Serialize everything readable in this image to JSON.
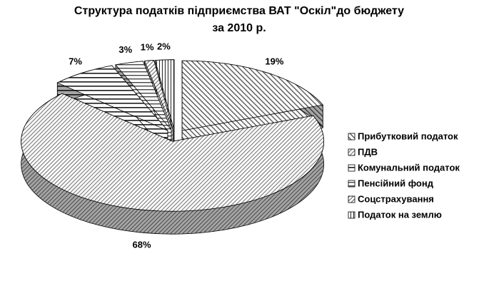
{
  "chart_data": {
    "type": "pie3d",
    "title": [
      "Структура податків підприємства ВАТ \"Оскіл\"до бюджету",
      "за 2010 р."
    ],
    "categories": [
      "Прибутковий податок",
      "ПДВ",
      "Комунальний податок",
      "Пенсійний фонд",
      "Соцстрахування",
      "Податок на землю"
    ],
    "values": [
      19,
      68,
      7,
      3,
      1,
      2
    ],
    "value_labels": [
      "19%",
      "68%",
      "7%",
      "3%",
      "1%",
      "2%"
    ],
    "colors": [
      "#555555",
      "#777777",
      "#222222",
      "#444444",
      "#666666",
      "#333333"
    ],
    "explode": true,
    "legend": "right"
  }
}
